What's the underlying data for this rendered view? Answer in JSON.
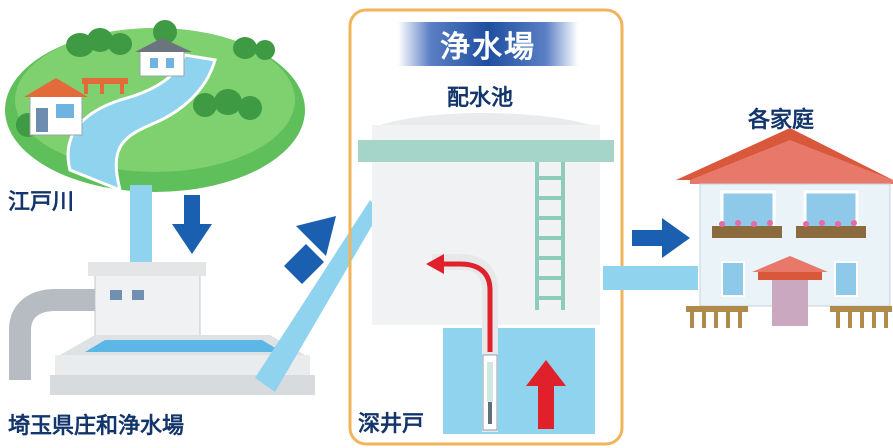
{
  "labels": {
    "river": "江戸川",
    "plant_origin": "埼玉県庄和浄水場",
    "treatment_plant": "浄水場",
    "reservoir": "配水池",
    "households": "各家庭",
    "deep_well": "深井戸"
  },
  "colors": {
    "water": "#8fd3ef",
    "arrow_blue": "#1b5fb0",
    "arrow_red": "#e0202a",
    "frame_orange": "#f2b35a",
    "label_navy": "#12356b"
  }
}
